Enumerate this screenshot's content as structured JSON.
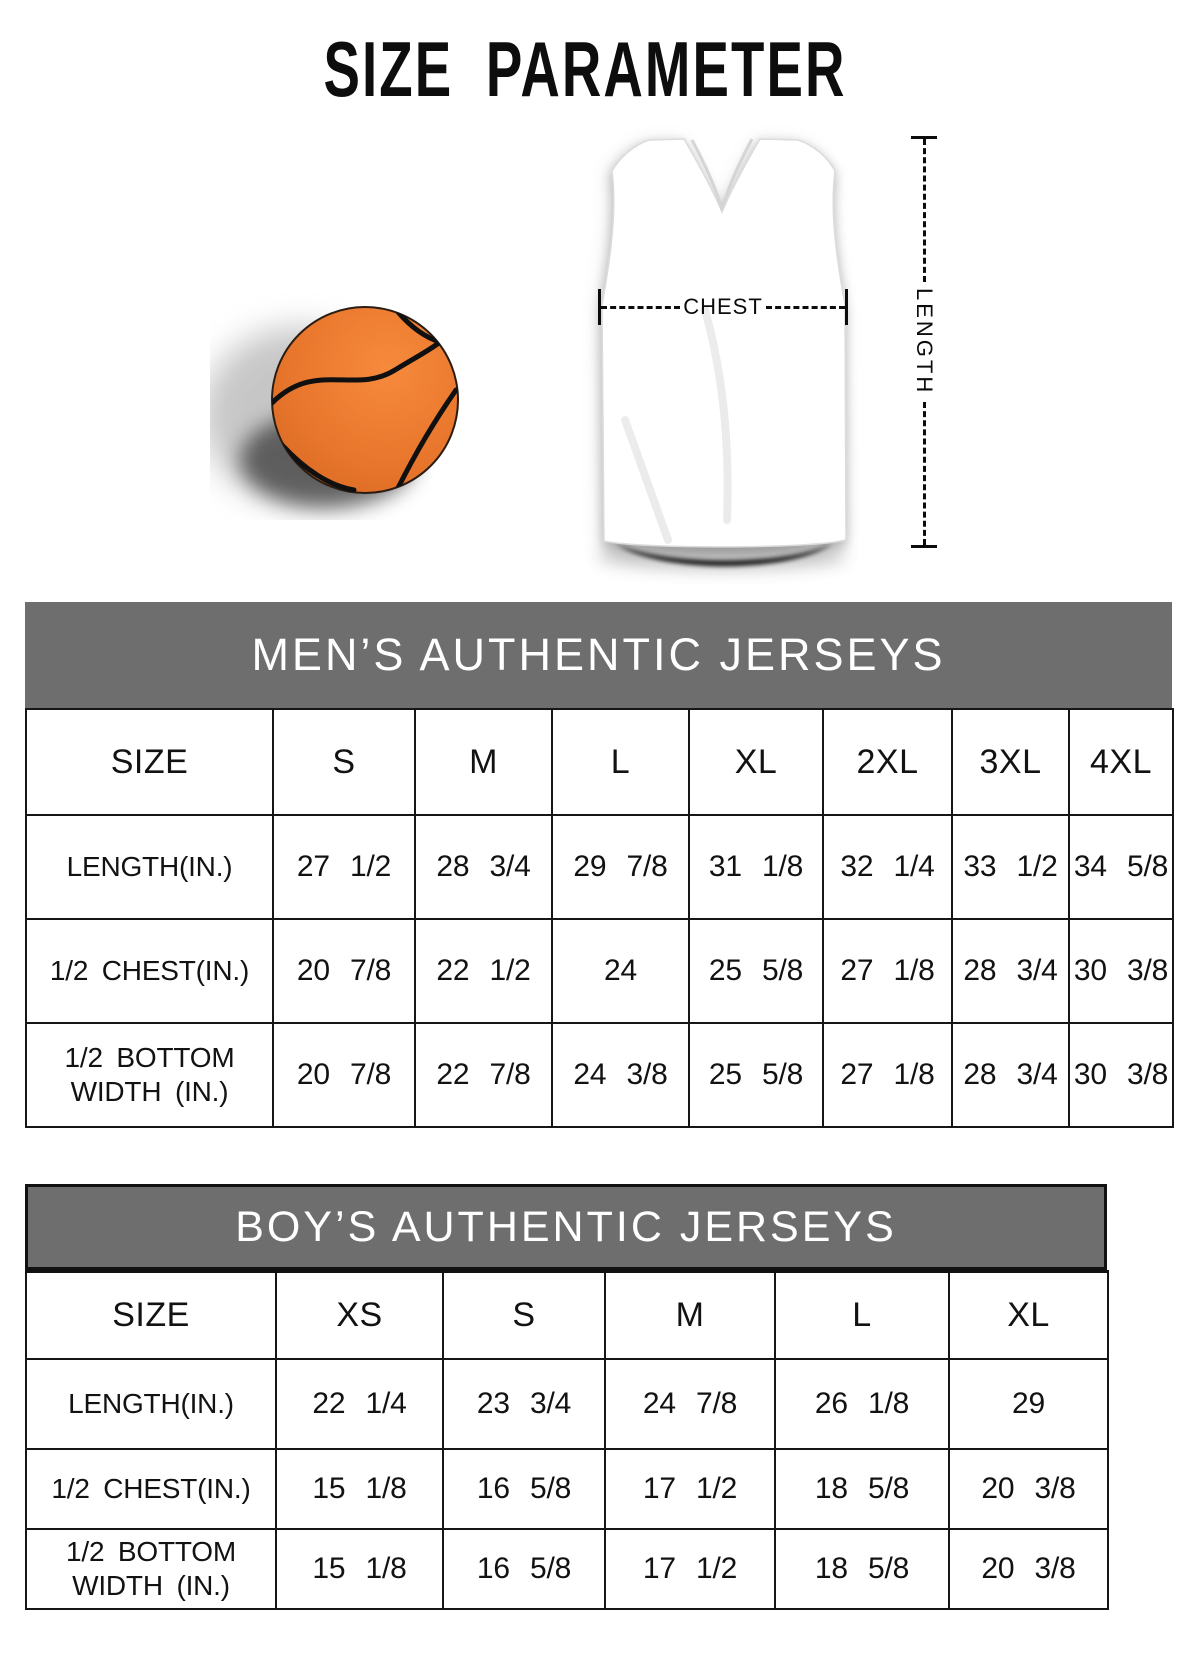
{
  "page_title": "SIZE PARAMETER",
  "diagram": {
    "chest_label": "CHEST",
    "length_label": "LENGTH"
  },
  "colors": {
    "band_gray": "#6e6e6e",
    "table_border": "#161616",
    "basketball_orange": "#e8762c",
    "title_black": "#0d0d0d",
    "background": "#ffffff"
  },
  "mens_table": {
    "title": "MEN’S AUTHENTIC JERSEYS",
    "columns": [
      "SIZE",
      "S",
      "M",
      "L",
      "XL",
      "2XL",
      "3XL",
      "4XL"
    ],
    "rows": [
      {
        "label_lines": [
          "LENGTH(IN.)"
        ],
        "values": [
          "27 1/2",
          "28 3/4",
          "29 7/8",
          "31 1/8",
          "32 1/4",
          "33 1/2",
          "34 5/8"
        ]
      },
      {
        "label_lines": [
          "1/2 CHEST(IN.)"
        ],
        "values": [
          "20 7/8",
          "22 1/2",
          "24",
          "25 5/8",
          "27 1/8",
          "28 3/4",
          "30 3/8"
        ]
      },
      {
        "label_lines": [
          "1/2 BOTTOM",
          "WIDTH (IN.)"
        ],
        "values": [
          "20 7/8",
          "22 7/8",
          "24 3/8",
          "25 5/8",
          "27 1/8",
          "28 3/4",
          "30 3/8"
        ]
      }
    ]
  },
  "boys_table": {
    "title": "BOY’S AUTHENTIC JERSEYS",
    "columns": [
      "SIZE",
      "XS",
      "S",
      "M",
      "L",
      "XL"
    ],
    "rows": [
      {
        "label_lines": [
          "LENGTH(IN.)"
        ],
        "values": [
          "22 1/4",
          "23 3/4",
          "24 7/8",
          "26 1/8",
          "29"
        ]
      },
      {
        "label_lines": [
          "1/2 CHEST(IN.)"
        ],
        "values": [
          "15 1/8",
          "16 5/8",
          "17 1/2",
          "18 5/8",
          "20 3/8"
        ]
      },
      {
        "label_lines": [
          "1/2 BOTTOM",
          "WIDTH (IN.)"
        ],
        "values": [
          "15 1/8",
          "16 5/8",
          "17 1/2",
          "18 5/8",
          "20 3/8"
        ]
      }
    ]
  }
}
